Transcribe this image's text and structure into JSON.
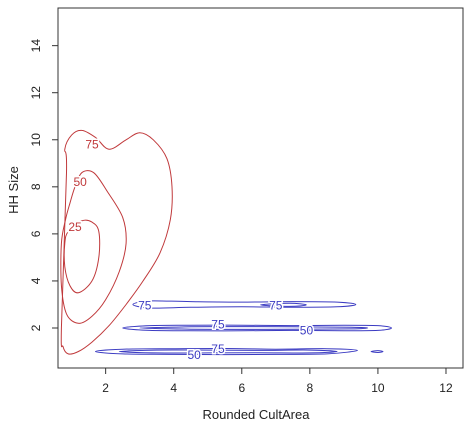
{
  "chart_data": {
    "type": "contour",
    "xlabel": "Rounded CultArea",
    "ylabel": "HH Size",
    "xlim": [
      0.6,
      12.5
    ],
    "ylim": [
      0.3,
      15.6
    ],
    "x_ticks": [
      2,
      4,
      6,
      8,
      10,
      12
    ],
    "y_ticks": [
      2,
      4,
      6,
      8,
      10,
      12,
      14
    ],
    "grid": false,
    "legend": "none",
    "series": [
      {
        "color": "#c0393b",
        "contours": [
          {
            "level": 75,
            "label": "75",
            "label_at": [
              1.6,
              9.8
            ],
            "points": [
              [
                0.85,
                8.6
              ],
              [
                0.8,
                9.6
              ],
              [
                1.0,
                10.2
              ],
              [
                1.3,
                10.4
              ],
              [
                1.7,
                10.1
              ],
              [
                2.1,
                9.6
              ],
              [
                2.6,
                10.0
              ],
              [
                3.0,
                10.3
              ],
              [
                3.4,
                10.0
              ],
              [
                3.8,
                9.2
              ],
              [
                3.95,
                8.0
              ],
              [
                3.9,
                6.6
              ],
              [
                3.6,
                5.2
              ],
              [
                3.1,
                4.0
              ],
              [
                2.6,
                3.0
              ],
              [
                2.1,
                2.1
              ],
              [
                1.6,
                1.4
              ],
              [
                1.2,
                1.0
              ],
              [
                0.9,
                0.9
              ],
              [
                0.75,
                1.2
              ],
              [
                0.7,
                2.0
              ]
            ]
          },
          {
            "level": 50,
            "label": "50",
            "label_at": [
              1.25,
              8.2
            ],
            "points": [
              [
                0.95,
                7.3
              ],
              [
                1.1,
                8.0
              ],
              [
                1.3,
                8.6
              ],
              [
                1.65,
                8.6
              ],
              [
                2.05,
                7.8
              ],
              [
                2.5,
                6.7
              ],
              [
                2.6,
                5.6
              ],
              [
                2.4,
                4.4
              ],
              [
                2.0,
                3.2
              ],
              [
                1.6,
                2.5
              ],
              [
                1.2,
                2.2
              ],
              [
                0.85,
                2.6
              ],
              [
                0.7,
                3.8
              ],
              [
                0.7,
                5.6
              ],
              [
                0.82,
                6.6
              ]
            ]
          },
          {
            "level": 25,
            "label": "25",
            "label_at": [
              1.1,
              6.3
            ],
            "points": [
              [
                1.3,
                6.55
              ],
              [
                1.6,
                6.5
              ],
              [
                1.8,
                6.1
              ],
              [
                1.8,
                5.0
              ],
              [
                1.6,
                4.0
              ],
              [
                1.2,
                3.5
              ],
              [
                0.95,
                3.8
              ],
              [
                0.8,
                4.6
              ],
              [
                0.8,
                5.6
              ],
              [
                0.9,
                6.1
              ]
            ]
          }
        ]
      },
      {
        "color": "#3b3bc2",
        "contours": [
          {
            "level": 75,
            "label": "75",
            "label_at": [
              3.15,
              2.95
            ],
            "points": [
              [
                2.8,
                3.0
              ],
              [
                3.3,
                3.15
              ],
              [
                4.5,
                3.12
              ],
              [
                6.0,
                3.1
              ],
              [
                7.5,
                3.12
              ],
              [
                8.8,
                3.1
              ],
              [
                9.35,
                3.0
              ],
              [
                8.8,
                2.9
              ],
              [
                7.5,
                2.88
              ],
              [
                6.0,
                2.9
              ],
              [
                4.5,
                2.88
              ],
              [
                3.3,
                2.85
              ]
            ]
          },
          {
            "level": 75,
            "label": "75",
            "label_at": [
              7.0,
              2.95
            ],
            "points": [
              [
                6.55,
                2.98
              ],
              [
                7.4,
                3.05
              ],
              [
                7.9,
                2.98
              ],
              [
                7.4,
                2.92
              ]
            ]
          },
          {
            "level": 75,
            "label": "75",
            "label_at": [
              5.3,
              2.15
            ],
            "points": [
              [
                2.5,
                2.0
              ],
              [
                3.3,
                2.1
              ],
              [
                4.5,
                2.12
              ],
              [
                6.0,
                2.12
              ],
              [
                7.5,
                2.1
              ],
              [
                9.0,
                2.12
              ],
              [
                10.0,
                2.1
              ],
              [
                10.4,
                2.0
              ],
              [
                10.0,
                1.9
              ],
              [
                9.0,
                1.88
              ],
              [
                7.5,
                1.9
              ],
              [
                6.0,
                1.88
              ],
              [
                4.5,
                1.88
              ],
              [
                3.3,
                1.9
              ]
            ]
          },
          {
            "level": 50,
            "label": "50",
            "label_at": [
              7.9,
              1.9
            ],
            "points": [
              [
                3.0,
                2.0
              ],
              [
                4.5,
                2.05
              ],
              [
                6.0,
                2.06
              ],
              [
                7.5,
                2.05
              ],
              [
                9.2,
                2.03
              ],
              [
                9.7,
                2.0
              ],
              [
                9.2,
                1.96
              ],
              [
                7.5,
                1.95
              ],
              [
                6.0,
                1.94
              ],
              [
                4.5,
                1.95
              ]
            ]
          },
          {
            "level": 75,
            "label": "75",
            "label_at": [
              5.3,
              1.1
            ],
            "points": [
              [
                1.7,
                1.0
              ],
              [
                2.5,
                1.1
              ],
              [
                4.0,
                1.12
              ],
              [
                5.5,
                1.13
              ],
              [
                7.0,
                1.1
              ],
              [
                8.5,
                1.12
              ],
              [
                9.4,
                1.05
              ],
              [
                8.5,
                0.9
              ],
              [
                7.0,
                0.88
              ],
              [
                5.5,
                0.87
              ],
              [
                4.0,
                0.88
              ],
              [
                2.5,
                0.9
              ]
            ]
          },
          {
            "level": 50,
            "label": "50",
            "label_at": [
              4.6,
              0.85
            ],
            "points": [
              [
                2.4,
                1.0
              ],
              [
                3.5,
                1.06
              ],
              [
                5.0,
                1.06
              ],
              [
                6.5,
                1.05
              ],
              [
                8.0,
                1.06
              ],
              [
                8.8,
                1.0
              ],
              [
                8.0,
                0.94
              ],
              [
                6.5,
                0.95
              ],
              [
                5.0,
                0.94
              ],
              [
                3.5,
                0.94
              ]
            ]
          },
          {
            "level": 50,
            "label": "",
            "label_at": [
              0,
              0
            ],
            "points": [
              [
                9.8,
                1.0
              ],
              [
                10.0,
                1.04
              ],
              [
                10.15,
                1.0
              ],
              [
                10.0,
                0.96
              ]
            ]
          }
        ]
      }
    ]
  }
}
